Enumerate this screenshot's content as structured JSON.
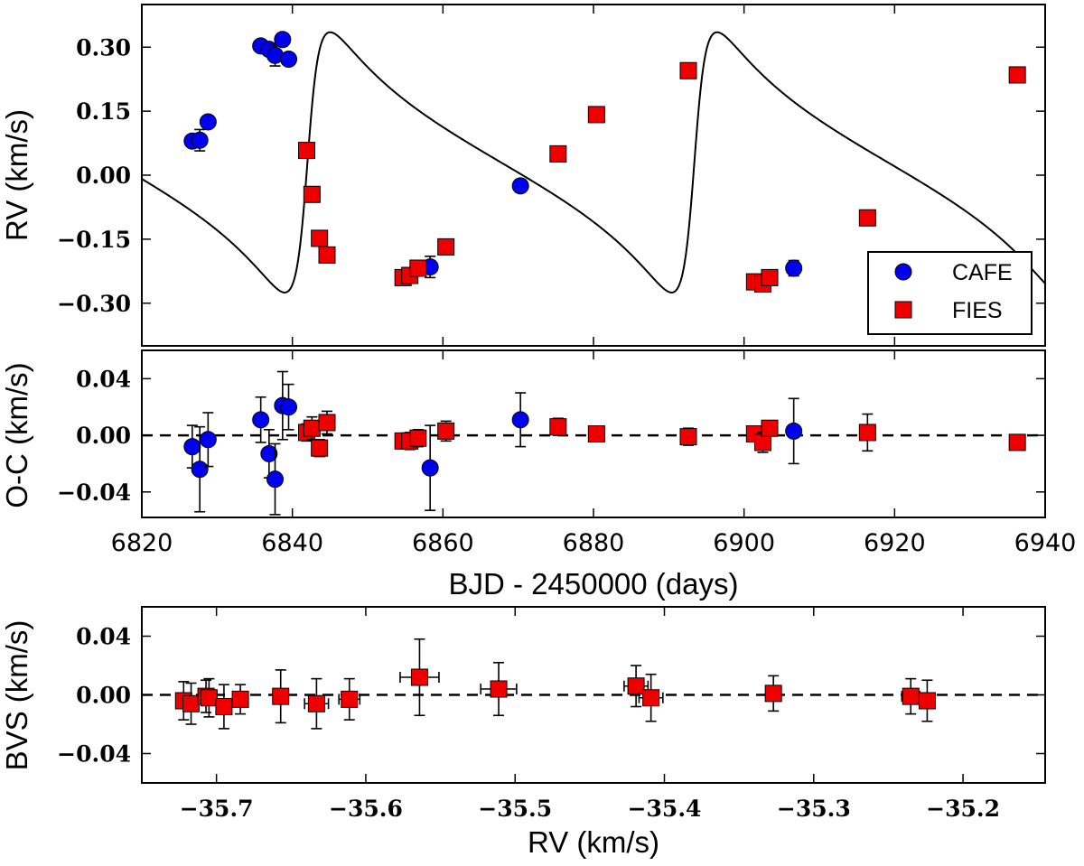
{
  "chart_data": [
    {
      "type": "scatter",
      "title": "",
      "xlabel": "",
      "ylabel": "RV (km/s)",
      "xlim": [
        6820,
        6940
      ],
      "ylim": [
        -0.4,
        0.4
      ],
      "yticks": [
        -0.3,
        -0.15,
        0.0,
        0.15,
        0.3
      ],
      "ytick_labels": [
        "−0.30",
        "−0.15",
        "0.00",
        "0.15",
        "0.30"
      ],
      "legend": {
        "placement": "lower-right",
        "entries": [
          "CAFE",
          "FIES"
        ]
      },
      "model_curve": {
        "type": "keplerian",
        "period": 51.4,
        "eccentricity": 0.65,
        "omega_deg": 270,
        "semi_amplitude": 0.305,
        "systemic_velocity": 0.03,
        "time_of_periastron": 6842.0
      },
      "series": [
        {
          "name": "CAFE",
          "marker": "circle",
          "color": "#0000ee",
          "x": [
            6826.7,
            6827.7,
            6828.8,
            6835.8,
            6836.9,
            6837.7,
            6838.7,
            6839.5,
            6858.3,
            6870.3,
            6906.6
          ],
          "y": [
            0.08,
            0.082,
            0.125,
            0.303,
            0.295,
            0.281,
            0.318,
            0.272,
            -0.215,
            -0.025,
            -0.218
          ],
          "yerr": [
            0.01,
            0.025,
            0.012,
            0.012,
            0.012,
            0.025,
            0.015,
            0.012,
            0.025,
            0.015,
            0.018
          ]
        },
        {
          "name": "FIES",
          "marker": "square",
          "color": "#ee0000",
          "x": [
            6841.9,
            6842.6,
            6843.6,
            6844.6,
            6854.7,
            6855.6,
            6856.7,
            6860.4,
            6875.3,
            6880.4,
            6892.6,
            6901.4,
            6902.5,
            6903.4,
            6916.4,
            6936.3
          ],
          "y": [
            0.058,
            -0.045,
            -0.148,
            -0.187,
            -0.24,
            -0.235,
            -0.218,
            -0.168,
            0.05,
            0.142,
            0.245,
            -0.25,
            -0.255,
            -0.24,
            -0.1,
            0.235
          ],
          "yerr": [
            0.005,
            0.005,
            0.005,
            0.005,
            0.005,
            0.005,
            0.005,
            0.005,
            0.005,
            0.005,
            0.005,
            0.005,
            0.005,
            0.005,
            0.005,
            0.005
          ]
        }
      ]
    },
    {
      "type": "scatter",
      "title": "",
      "xlabel": "BJD - 2450000 (days)",
      "ylabel": "O-C (km/s)",
      "xlim": [
        6820,
        6940
      ],
      "ylim": [
        -0.058,
        0.06
      ],
      "xticks": [
        6820,
        6840,
        6860,
        6880,
        6900,
        6920,
        6940
      ],
      "xtick_labels": [
        "6820",
        "6840",
        "6860",
        "6880",
        "6900",
        "6920",
        "6940"
      ],
      "yticks": [
        -0.04,
        0.0,
        0.04
      ],
      "ytick_labels": [
        "−0.04",
        "0.00",
        "0.04"
      ],
      "reference_line": 0.0,
      "series": [
        {
          "name": "CAFE",
          "marker": "circle",
          "color": "#0000ee",
          "x": [
            6826.7,
            6827.7,
            6828.8,
            6835.8,
            6836.9,
            6837.7,
            6838.7,
            6839.5,
            6858.3,
            6870.3,
            6906.6
          ],
          "y": [
            -0.008,
            -0.024,
            -0.003,
            0.011,
            -0.013,
            -0.031,
            0.021,
            0.02,
            -0.023,
            0.011,
            0.003
          ],
          "yerr": [
            0.015,
            0.03,
            0.019,
            0.016,
            0.017,
            0.025,
            0.024,
            0.016,
            0.03,
            0.019,
            0.023
          ]
        },
        {
          "name": "FIES",
          "marker": "square",
          "color": "#ee0000",
          "x": [
            6841.9,
            6842.6,
            6843.6,
            6844.6,
            6854.7,
            6855.6,
            6856.7,
            6860.4,
            6875.3,
            6880.4,
            6892.6,
            6901.4,
            6902.5,
            6903.4,
            6916.4,
            6936.3
          ],
          "y": [
            0.002,
            0.005,
            -0.009,
            0.009,
            -0.004,
            -0.004,
            -0.002,
            0.003,
            0.006,
            0.001,
            -0.001,
            0.001,
            -0.005,
            0.005,
            0.002,
            -0.005
          ],
          "yerr": [
            0.006,
            0.008,
            0.006,
            0.008,
            0.005,
            0.006,
            0.006,
            0.007,
            0.006,
            0.005,
            0.006,
            0.005,
            0.007,
            0.005,
            0.013,
            0.004
          ]
        }
      ]
    },
    {
      "type": "scatter",
      "title": "",
      "xlabel": "RV (km/s)",
      "ylabel": "BVS (km/s)",
      "xlim": [
        -35.75,
        -35.145
      ],
      "ylim": [
        -0.06,
        0.06
      ],
      "xticks": [
        -35.7,
        -35.6,
        -35.5,
        -35.4,
        -35.3,
        -35.2
      ],
      "xtick_labels": [
        "−35.7",
        "−35.6",
        "−35.5",
        "−35.4",
        "−35.3",
        "−35.2"
      ],
      "yticks": [
        -0.04,
        0.0,
        0.04
      ],
      "ytick_labels": [
        "−0.04",
        "0.00",
        "0.04"
      ],
      "reference_line": 0.0,
      "series": [
        {
          "name": "FIES",
          "marker": "square",
          "color": "#ee0000",
          "x": [
            -35.722,
            -35.717,
            -35.707,
            -35.705,
            -35.695,
            -35.684,
            -35.657,
            -35.633,
            -35.611,
            -35.564,
            -35.511,
            -35.419,
            -35.409,
            -35.327,
            -35.235,
            -35.224
          ],
          "y": [
            -0.004,
            -0.006,
            -0.001,
            -0.002,
            -0.008,
            -0.003,
            -0.001,
            -0.006,
            -0.003,
            0.012,
            0.004,
            0.006,
            -0.002,
            0.001,
            -0.001,
            -0.004
          ],
          "yerr": [
            0.013,
            0.014,
            0.011,
            0.013,
            0.015,
            0.01,
            0.018,
            0.017,
            0.014,
            0.026,
            0.018,
            0.014,
            0.016,
            0.012,
            0.012,
            0.014
          ],
          "xerr": [
            0.005,
            0.005,
            0.005,
            0.005,
            0.005,
            0.005,
            0.005,
            0.008,
            0.007,
            0.013,
            0.012,
            0.008,
            0.008,
            0.005,
            0.006,
            0.005
          ]
        }
      ]
    }
  ]
}
